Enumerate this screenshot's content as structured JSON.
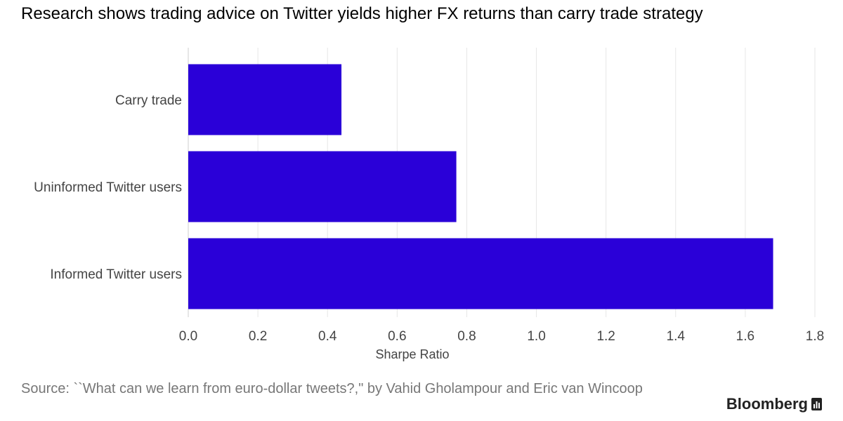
{
  "title": "Research shows trading advice on Twitter yields higher FX returns than carry trade strategy",
  "source": "Source: ``What can we learn from euro-dollar tweets?,\" by Vahid Gholampour and Eric van Wincoop",
  "brand": {
    "name": "Bloomberg",
    "icon": "bloomberg-chart-icon"
  },
  "chart_data": {
    "type": "bar",
    "orientation": "horizontal",
    "categories": [
      "Carry trade",
      "Uninformed Twitter users",
      "Informed Twitter users"
    ],
    "values": [
      0.44,
      0.77,
      1.68
    ],
    "title": "Research shows trading advice on Twitter yields higher FX returns than carry trade strategy",
    "xlabel": "Sharpe Ratio",
    "ylabel": "",
    "xlim": [
      0,
      1.8
    ],
    "xticks": [
      "0.0",
      "0.2",
      "0.4",
      "0.6",
      "0.8",
      "1.0",
      "1.2",
      "1.4",
      "1.6",
      "1.8"
    ],
    "grid": true,
    "legend": "none",
    "bar_color": "#2a00d8"
  }
}
